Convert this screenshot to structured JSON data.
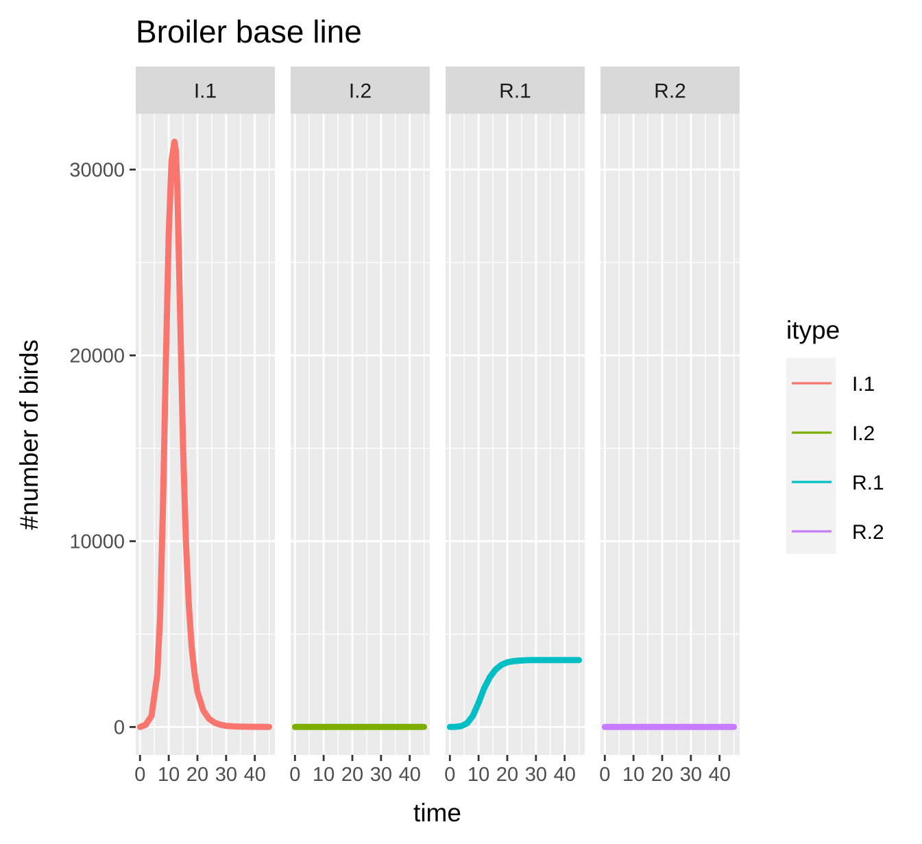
{
  "chart_data": {
    "type": "line",
    "title": "Broiler base line",
    "xlabel": "time",
    "ylabel": "#number of birds",
    "facet_variable": "itype",
    "facets": [
      "I.1",
      "I.2",
      "R.1",
      "R.2"
    ],
    "xlim": [
      -1.5,
      47
    ],
    "ylim": [
      -1500,
      33000
    ],
    "x_ticks": [
      0,
      10,
      20,
      30,
      40
    ],
    "x_tick_labels": [
      "0",
      "10",
      "20",
      "30",
      "40"
    ],
    "y_ticks": [
      0,
      10000,
      20000,
      30000
    ],
    "y_tick_labels": [
      "0",
      "10000",
      "20000",
      "30000"
    ],
    "grid": true,
    "legend": {
      "title": "itype",
      "position": "right",
      "entries": [
        "I.1",
        "I.2",
        "R.1",
        "R.2"
      ]
    },
    "series": [
      {
        "name": "I.1",
        "color": "#F8766D",
        "x": [
          0,
          2,
          4,
          6,
          7,
          8,
          9,
          10,
          11,
          12,
          12.5,
          13,
          14,
          15,
          16,
          17,
          18,
          19,
          20,
          22,
          24,
          26,
          28,
          30,
          33,
          36,
          40,
          45
        ],
        "y": [
          0,
          120,
          600,
          2800,
          6000,
          12000,
          19500,
          26500,
          30500,
          31500,
          31000,
          29000,
          22000,
          15000,
          10000,
          6600,
          4300,
          2900,
          1900,
          900,
          450,
          230,
          120,
          60,
          30,
          15,
          8,
          5
        ]
      },
      {
        "name": "I.2",
        "color": "#7CAE00",
        "x": [
          0,
          45
        ],
        "y": [
          0,
          0
        ]
      },
      {
        "name": "R.1",
        "color": "#00BFC4",
        "x": [
          0,
          2,
          4,
          6,
          8,
          10,
          12,
          14,
          16,
          18,
          20,
          22,
          24,
          26,
          28,
          30,
          33,
          36,
          40,
          45
        ],
        "y": [
          0,
          10,
          50,
          200,
          600,
          1300,
          2100,
          2700,
          3100,
          3350,
          3480,
          3540,
          3570,
          3590,
          3600,
          3600,
          3600,
          3600,
          3600,
          3600
        ]
      },
      {
        "name": "R.2",
        "color": "#C77CFF",
        "x": [
          0,
          45
        ],
        "y": [
          0,
          0
        ]
      }
    ]
  }
}
